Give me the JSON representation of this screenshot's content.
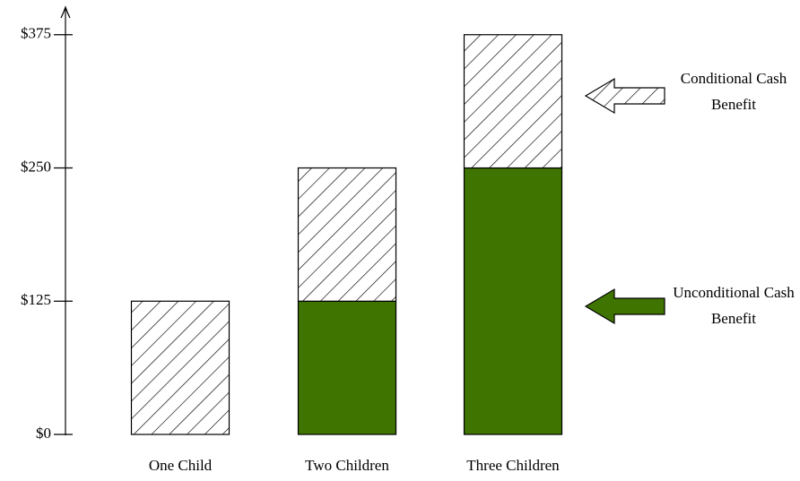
{
  "chart_data": {
    "type": "stacked_bar",
    "categories": [
      "One Child",
      "Two Children",
      "Three Children"
    ],
    "series": [
      {
        "name": "Unconditional Cash Benefit",
        "color": "#3f7400",
        "hatch": false,
        "values": [
          0,
          125,
          250
        ]
      },
      {
        "name": "Conditional Cash Benefit",
        "color": "#000000",
        "hatch": true,
        "values": [
          125,
          125,
          125
        ]
      }
    ],
    "ylim": [
      0,
      400
    ],
    "yticks": [
      {
        "value": 0,
        "label": "$0"
      },
      {
        "value": 125,
        "label": "$125"
      },
      {
        "value": 250,
        "label": "$250"
      },
      {
        "value": 375,
        "label": "$375"
      }
    ],
    "grid": false
  }
}
